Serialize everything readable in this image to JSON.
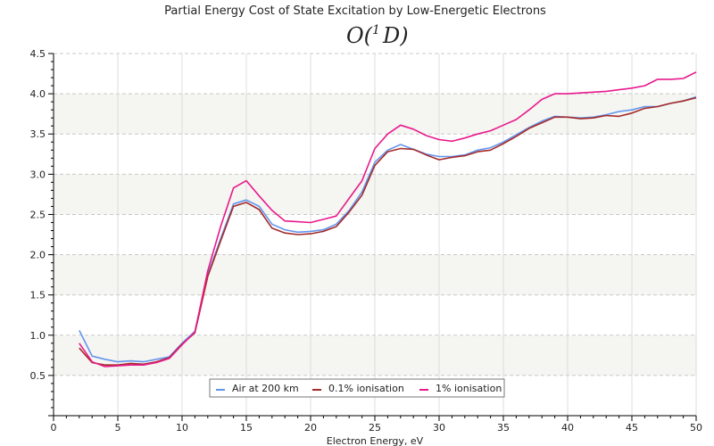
{
  "chart_data": {
    "type": "line",
    "title": "Partial Energy Cost of State Excitation by Low-Energetic Electrons",
    "subtitle": "O(1D)",
    "subtitle_parts": {
      "base": "O(",
      "superscript": "1",
      "term": "D",
      "close": ")"
    },
    "xlabel": "Electron Energy, eV",
    "ylabel": "",
    "xlim": [
      0,
      50
    ],
    "ylim": [
      0,
      4.5
    ],
    "x_ticks": [
      "0",
      "5",
      "10",
      "15",
      "20",
      "25",
      "30",
      "35",
      "40",
      "45",
      "50"
    ],
    "y_ticks": [
      "0.5",
      "1.0",
      "1.5",
      "2.0",
      "2.5",
      "3.0",
      "3.5",
      "4.0",
      "4.5"
    ],
    "grid": true,
    "legend_position": "bottom-center",
    "x": [
      2,
      3,
      4,
      5,
      6,
      7,
      8,
      9,
      10,
      11,
      12,
      13,
      14,
      15,
      16,
      17,
      18,
      19,
      20,
      21,
      22,
      23,
      24,
      25,
      26,
      27,
      28,
      29,
      30,
      31,
      32,
      33,
      34,
      35,
      36,
      37,
      38,
      39,
      40,
      41,
      42,
      43,
      44,
      45,
      46,
      47,
      48,
      49,
      50
    ],
    "series": [
      {
        "name": "Air at 200 km",
        "color": "#6495ed",
        "values": [
          1.06,
          0.74,
          0.7,
          0.67,
          0.68,
          0.67,
          0.7,
          0.73,
          0.9,
          1.05,
          1.75,
          2.2,
          2.63,
          2.68,
          2.6,
          2.38,
          2.31,
          2.28,
          2.29,
          2.31,
          2.38,
          2.55,
          2.78,
          3.15,
          3.3,
          3.37,
          3.31,
          3.25,
          3.22,
          3.22,
          3.24,
          3.3,
          3.33,
          3.4,
          3.49,
          3.58,
          3.66,
          3.72,
          3.71,
          3.7,
          3.71,
          3.74,
          3.78,
          3.8,
          3.84,
          3.84,
          3.88,
          3.91,
          3.96
        ]
      },
      {
        "name": "0.1% ionisation",
        "color": "#a52a2a",
        "values": [
          0.84,
          0.66,
          0.63,
          0.63,
          0.65,
          0.64,
          0.67,
          0.72,
          0.89,
          1.03,
          1.73,
          2.17,
          2.6,
          2.65,
          2.56,
          2.33,
          2.27,
          2.25,
          2.26,
          2.29,
          2.35,
          2.53,
          2.74,
          3.11,
          3.28,
          3.32,
          3.31,
          3.24,
          3.18,
          3.21,
          3.23,
          3.28,
          3.3,
          3.38,
          3.47,
          3.57,
          3.64,
          3.71,
          3.71,
          3.69,
          3.7,
          3.73,
          3.72,
          3.76,
          3.82,
          3.84,
          3.88,
          3.91,
          3.95
        ]
      },
      {
        "name": "1% ionisation",
        "color": "#e8198c",
        "values": [
          0.9,
          0.67,
          0.61,
          0.62,
          0.63,
          0.63,
          0.66,
          0.71,
          0.88,
          1.04,
          1.8,
          2.35,
          2.83,
          2.92,
          2.73,
          2.55,
          2.42,
          2.41,
          2.4,
          2.44,
          2.48,
          2.7,
          2.92,
          3.32,
          3.5,
          3.61,
          3.56,
          3.48,
          3.43,
          3.41,
          3.45,
          3.5,
          3.54,
          3.61,
          3.68,
          3.8,
          3.93,
          4.0,
          4.0,
          4.01,
          4.02,
          4.03,
          4.05,
          4.07,
          4.1,
          4.18,
          4.18,
          4.19,
          4.27
        ]
      }
    ],
    "colors": {
      "band": "#f5f5f1",
      "grid": "#c8c8c8",
      "axis": "#000000"
    }
  }
}
